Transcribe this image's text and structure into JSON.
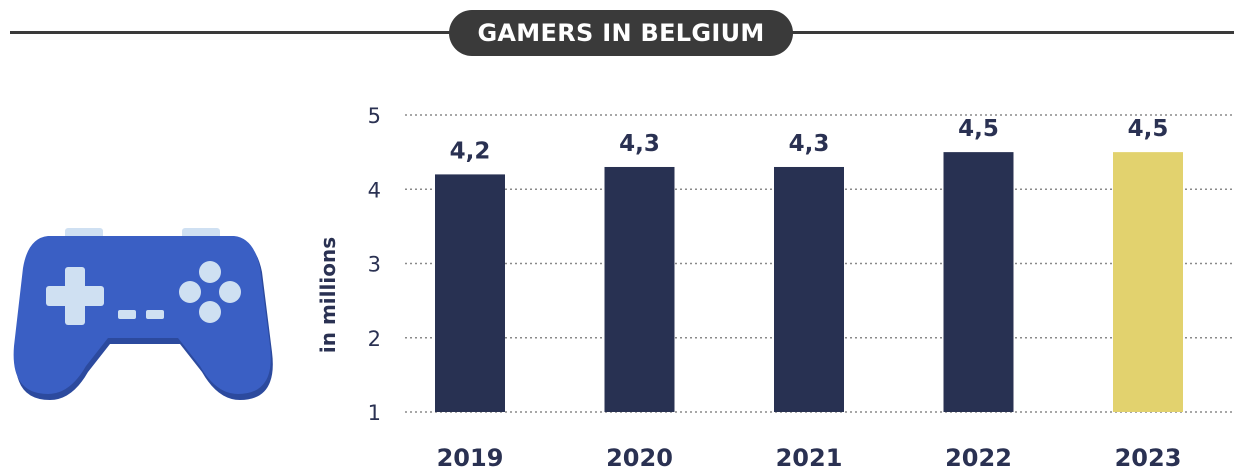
{
  "title": "GAMERS IN BELGIUM",
  "icons": {
    "gamepad": "gamepad-icon"
  },
  "colors": {
    "bar": "#283152",
    "highlight": "#e2d26e",
    "text": "#2a3152",
    "title_bg": "#3a3a3a"
  },
  "chart_data": {
    "type": "bar",
    "title": "GAMERS IN BELGIUM",
    "xlabel": "",
    "ylabel": "in millions",
    "categories": [
      "2019",
      "2020",
      "2021",
      "2022",
      "2023"
    ],
    "values": [
      4.2,
      4.3,
      4.3,
      4.5,
      4.5
    ],
    "data_labels": [
      "4,2",
      "4,3",
      "4,3",
      "4,5",
      "4,5"
    ],
    "ylim": [
      1,
      5
    ],
    "yticks": [
      "1",
      "2",
      "3",
      "4",
      "5"
    ],
    "grid": "horizontal dotted",
    "highlight_category": "2023"
  }
}
